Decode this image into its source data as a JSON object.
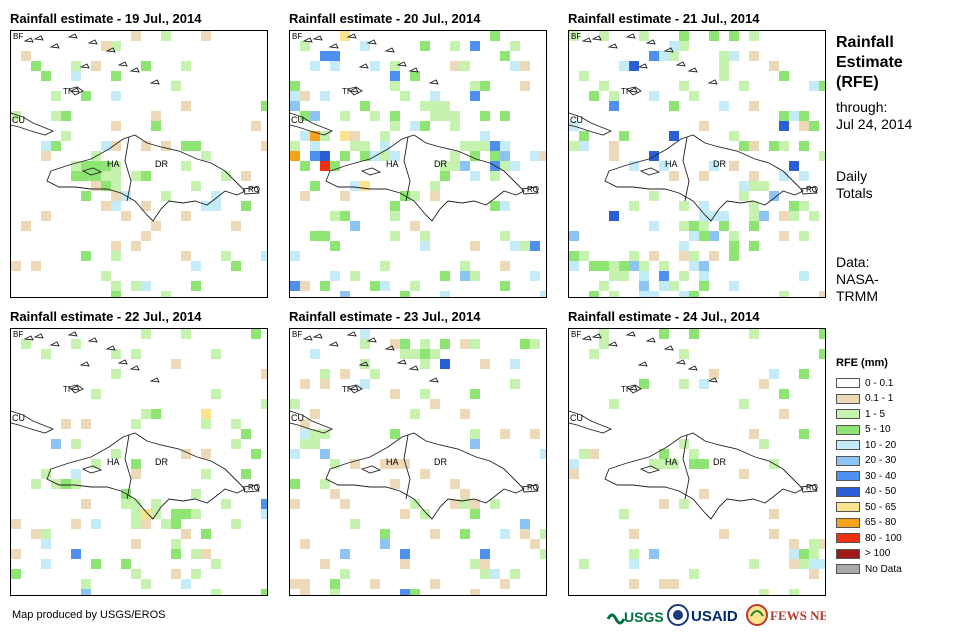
{
  "panels": [
    {
      "title": "Rainfall estimate - 19 Jul., 2014"
    },
    {
      "title": "Rainfall estimate - 20 Jul., 2014"
    },
    {
      "title": "Rainfall estimate - 21 Jul., 2014"
    },
    {
      "title": "Rainfall estimate - 22 Jul., 2014"
    },
    {
      "title": "Rainfall estimate - 23 Jul., 2014"
    },
    {
      "title": "Rainfall estimate - 24 Jul., 2014"
    }
  ],
  "map_labels": {
    "bf": "BF",
    "ti": "TI",
    "cu": "CU",
    "ha": "HA",
    "dr": "DR",
    "rq": "RQ"
  },
  "sidebar": {
    "title_line1": "Rainfall",
    "title_line2": "Estimate",
    "title_line3": "(RFE)",
    "through_label": "through:",
    "through_date": "Jul 24, 2014",
    "totals_line1": "Daily",
    "totals_line2": "Totals",
    "source_line1": "Data:",
    "source_line2": "NASA-",
    "source_line3": "TRMM"
  },
  "legend": {
    "title": "RFE (mm)",
    "items": [
      {
        "label": "0 - 0.1",
        "color": "#ffffff"
      },
      {
        "label": "0.1 - 1",
        "color": "#ecd9b8"
      },
      {
        "label": "1 - 5",
        "color": "#c6f2b0"
      },
      {
        "label": "5 - 10",
        "color": "#8fe573"
      },
      {
        "label": "10 - 20",
        "color": "#c4ecf8"
      },
      {
        "label": "20 - 30",
        "color": "#8cc4f3"
      },
      {
        "label": "30 - 40",
        "color": "#4f8ff0"
      },
      {
        "label": "40 - 50",
        "color": "#2a5fd6"
      },
      {
        "label": "50 - 65",
        "color": "#fbe48d"
      },
      {
        "label": "65 - 80",
        "color": "#f6a21a"
      },
      {
        "label": "80 - 100",
        "color": "#f03010"
      },
      {
        "label": "> 100",
        "color": "#a01818"
      },
      {
        "label": "No Data",
        "color": "#a8a8a8"
      }
    ]
  },
  "footer": {
    "credit": "Map produced by USGS/EROS"
  },
  "logos": {
    "usgs": "USGS",
    "usaid": "USAID",
    "fewsnet": "FEWS NET"
  }
}
